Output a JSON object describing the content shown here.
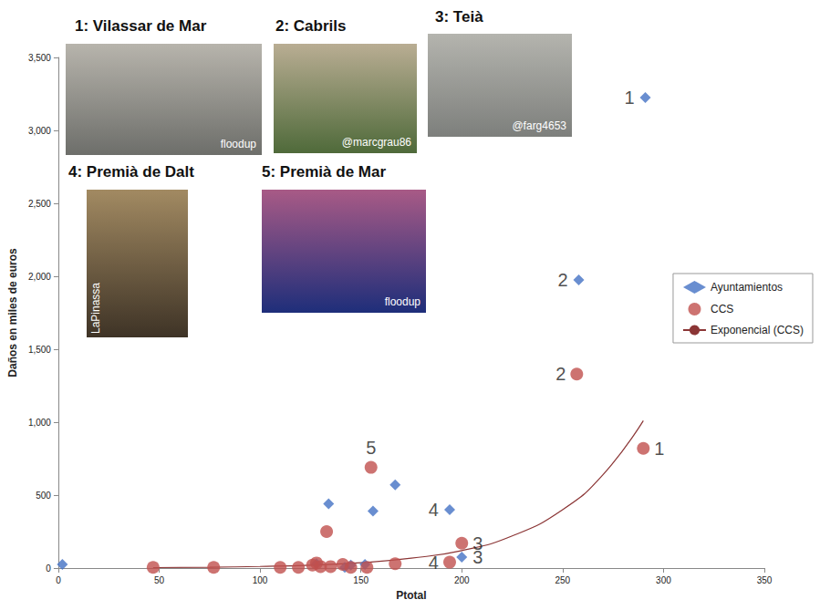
{
  "chart_data": {
    "type": "scatter",
    "xlabel": "Ptotal",
    "ylabel": "Daños en miles de euros",
    "xlim": [
      0,
      350
    ],
    "xticks": [
      0,
      50,
      100,
      150,
      200,
      250,
      300,
      350
    ],
    "ylim": [
      0,
      3500
    ],
    "yticks": [
      0,
      500,
      1000,
      1500,
      2000,
      2500,
      3000,
      3500
    ],
    "grid": false,
    "legend": "right",
    "series": [
      {
        "name": "Ayuntamientos",
        "type": "scatter",
        "marker": "diamond",
        "color": "#4472c4",
        "x": [
          2,
          128,
          142,
          145,
          152,
          134,
          156,
          167,
          194,
          200,
          258,
          291
        ],
        "values": [
          25,
          30,
          5,
          20,
          25,
          440,
          390,
          570,
          400,
          75,
          1975,
          3225
        ]
      },
      {
        "name": "CCS",
        "type": "scatter",
        "marker": "circle",
        "color": "#c0504d",
        "x": [
          47,
          77,
          110,
          119,
          126,
          128,
          130,
          133,
          135,
          141,
          145,
          153,
          155,
          167,
          194,
          200,
          257,
          290
        ],
        "values": [
          5,
          5,
          5,
          5,
          20,
          35,
          10,
          250,
          10,
          25,
          5,
          5,
          690,
          30,
          40,
          170,
          1330,
          820
        ]
      },
      {
        "name": "Exponencial (CCS)",
        "type": "line",
        "line_style": "solid",
        "color": "#8b3535",
        "x": [
          47,
          75,
          100,
          125,
          150,
          175,
          200,
          225,
          250,
          270,
          290
        ],
        "values": [
          3,
          6,
          11,
          20,
          37,
          68,
          120,
          220,
          400,
          640,
          1010
        ]
      }
    ],
    "annotations": [
      {
        "text": "1",
        "x": 291,
        "y": 3225,
        "side": "left"
      },
      {
        "text": "2",
        "x": 258,
        "y": 1975,
        "side": "left"
      },
      {
        "text": "2",
        "x": 257,
        "y": 1330,
        "side": "left"
      },
      {
        "text": "1",
        "x": 290,
        "y": 820,
        "side": "right"
      },
      {
        "text": "5",
        "x": 155,
        "y": 690,
        "side": "top"
      },
      {
        "text": "4",
        "x": 194,
        "y": 400,
        "side": "left"
      },
      {
        "text": "3",
        "x": 200,
        "y": 170,
        "side": "right"
      },
      {
        "text": "4",
        "x": 194,
        "y": 40,
        "side": "left"
      },
      {
        "text": "3",
        "x": 200,
        "y": 75,
        "side": "right"
      }
    ],
    "photos": [
      {
        "title": "1: Vilassar de Mar",
        "credit": "floodup"
      },
      {
        "title": "2: Cabrils",
        "credit": "@marcgrau86"
      },
      {
        "title": "3: Teià",
        "credit": "@farg4653"
      },
      {
        "title": "4: Premià de Dalt",
        "credit": "LaPinassa"
      },
      {
        "title": "5: Premià de Mar",
        "credit": "floodup"
      }
    ]
  }
}
